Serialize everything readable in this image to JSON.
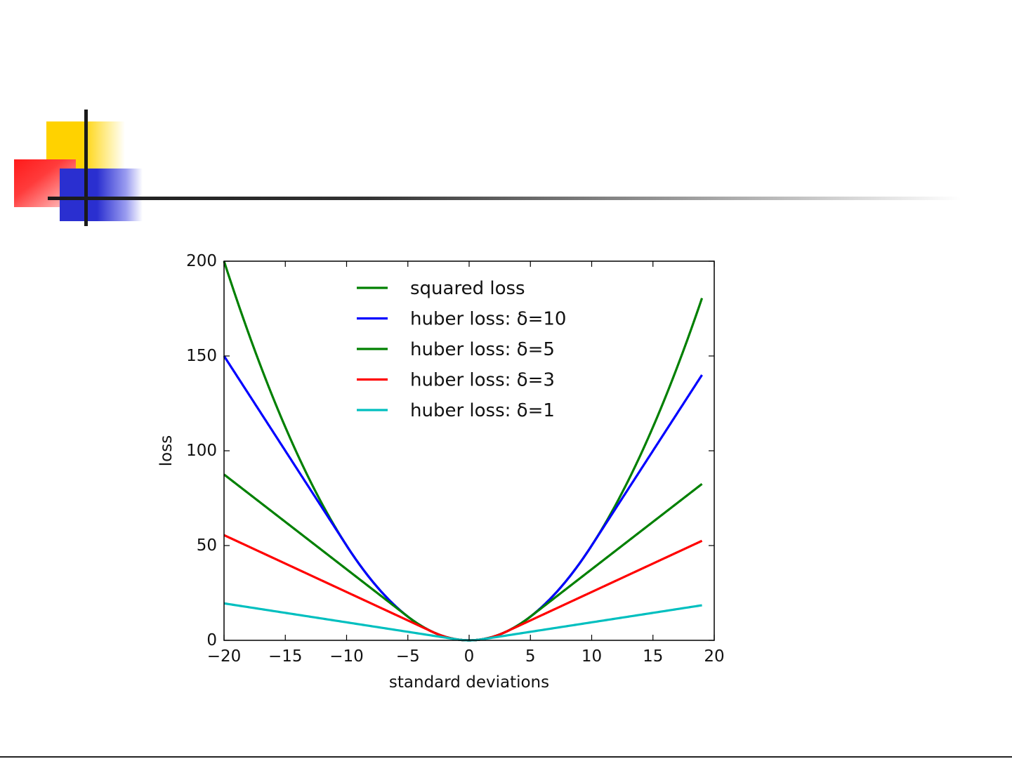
{
  "decoration": {
    "colors": {
      "yellow": "#ffd200",
      "red": "#ff1a1a",
      "blue": "#2a2fd0",
      "rule": "#1a1a1a"
    }
  },
  "chart_data": {
    "type": "line",
    "title": "",
    "xlabel": "standard deviations",
    "ylabel": "loss",
    "xlim": [
      -20,
      20
    ],
    "ylim": [
      0,
      200
    ],
    "xticks": [
      -20,
      -15,
      -10,
      -5,
      0,
      5,
      10,
      15,
      20
    ],
    "xtick_labels": [
      "−20",
      "−15",
      "−10",
      "−5",
      "0",
      "5",
      "10",
      "15",
      "20"
    ],
    "yticks": [
      0,
      50,
      100,
      150,
      200
    ],
    "ytick_labels": [
      "0",
      "50",
      "100",
      "150",
      "200"
    ],
    "grid": false,
    "legend_position": "top-center",
    "x_range": [
      -20,
      19
    ],
    "series": [
      {
        "name": "squared loss",
        "color": "#008000",
        "function": "squared",
        "delta": null
      },
      {
        "name": "huber loss: δ=10",
        "color": "#0000ff",
        "function": "huber",
        "delta": 10
      },
      {
        "name": "huber loss: δ=5",
        "color": "#008000",
        "function": "huber",
        "delta": 5
      },
      {
        "name": "huber loss: δ=3",
        "color": "#ff0000",
        "function": "huber",
        "delta": 3
      },
      {
        "name": "huber loss: δ=1",
        "color": "#00bfbf",
        "function": "huber",
        "delta": 1
      }
    ]
  }
}
